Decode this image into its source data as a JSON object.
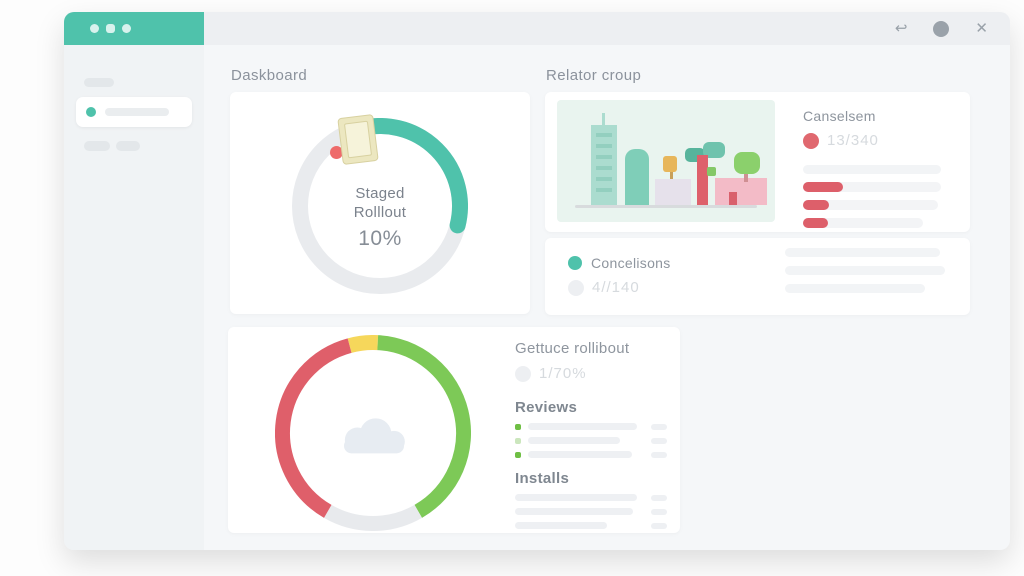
{
  "titlebar": {
    "left_icons": [
      "grid-icon",
      "person-icon",
      "chat-icon"
    ],
    "undo_icon": "↩",
    "close_icon": "✕"
  },
  "titles": {
    "dashboard": "Daskboard",
    "release_group": "Relator croup"
  },
  "staged_rollout": {
    "line1": "Staged",
    "line2": "Rolllout",
    "value": "10%"
  },
  "cancellations": {
    "label": "Canselsem",
    "value": "13/340"
  },
  "conclusions": {
    "label": "Concelisons",
    "value": "4//140"
  },
  "release_card": {
    "title": "Gettuce rollibout",
    "value": "1/70%",
    "reviews_label": "Reviews",
    "installs_label": "Installs"
  },
  "colors": {
    "accent_teal": "#4fc2ab",
    "red": "#df5f6a",
    "green": "#7dc957",
    "yellow": "#f6d75b",
    "track_gray": "#e9ebee"
  },
  "chart_data": [
    {
      "id": "donut-staged",
      "type": "donut",
      "title": "Staged Rolllout",
      "center_label": "10%",
      "size": 176,
      "stroke": 16,
      "cap": "round",
      "track_color": "#e9ebee",
      "segments": [
        {
          "label": "staged-rollout-progress",
          "color": "#4fc2ab",
          "start_deg": -14,
          "end_deg": 104
        }
      ]
    },
    {
      "id": "donut-release",
      "type": "donut",
      "title": "Gettuce rollibout",
      "size": 196,
      "stroke": 15,
      "cap": "butt",
      "track_color": null,
      "segments": [
        {
          "label": "yellow",
          "color": "#f6d75b",
          "start_deg": -15,
          "end_deg": 3
        },
        {
          "label": "green",
          "color": "#7dc957",
          "start_deg": 3,
          "end_deg": 150
        },
        {
          "label": "gray",
          "color": "#e8eaed",
          "start_deg": 150,
          "end_deg": 210
        },
        {
          "label": "red",
          "color": "#df5f6a",
          "start_deg": 210,
          "end_deg": 345
        }
      ]
    }
  ]
}
